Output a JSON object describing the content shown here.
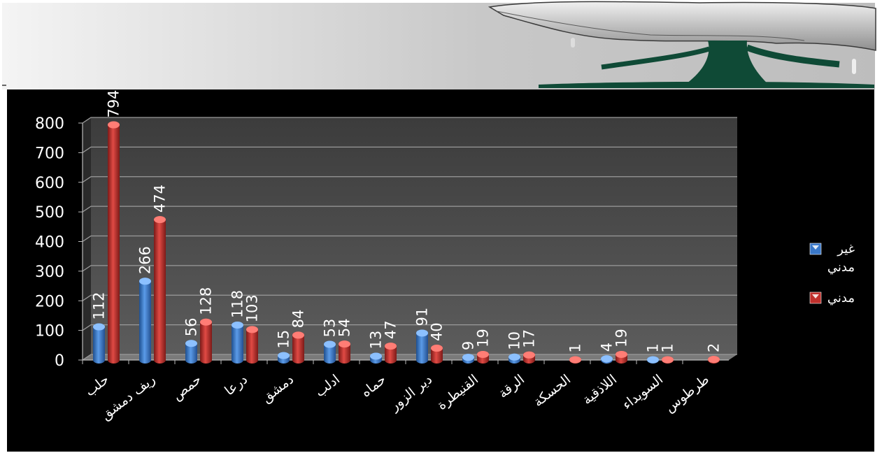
{
  "chart_data": {
    "type": "bar",
    "title": "",
    "xlabel": "",
    "ylabel": "",
    "ylim": [
      0,
      800
    ],
    "yticks": [
      0,
      100,
      200,
      300,
      400,
      500,
      600,
      700,
      800
    ],
    "grid": true,
    "legend_position": "right",
    "categories": [
      "حلب",
      "ريف دمشق",
      "حمص",
      "درعا",
      "دمشق",
      "ادلب",
      "حماه",
      "دير الزور",
      "القنيطرة",
      "الرقة",
      "الحسكة",
      "اللاذقية",
      "السويداء",
      "طرطوس"
    ],
    "series": [
      {
        "name": "غير مدني",
        "color": "#3a78c9",
        "values": [
          112,
          266,
          56,
          118,
          15,
          53,
          13,
          91,
          9,
          10,
          null,
          4,
          1,
          null
        ]
      },
      {
        "name": "مدني",
        "color": "#c0302c",
        "values": [
          794,
          474,
          128,
          103,
          84,
          54,
          47,
          40,
          19,
          17,
          1,
          19,
          1,
          2
        ]
      }
    ]
  }
}
